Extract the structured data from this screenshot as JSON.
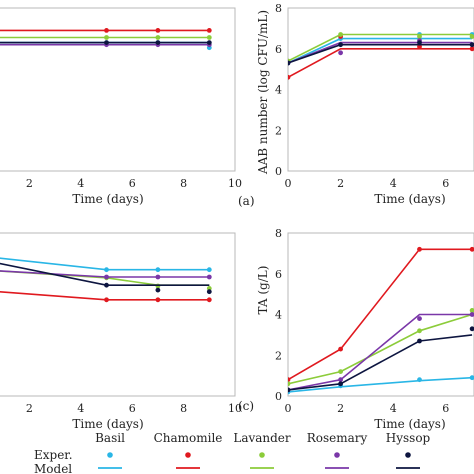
{
  "colors": {
    "Basil": "#29b6e6",
    "Chamomile": "#e0191f",
    "Lavander": "#8ccc3a",
    "Rosemary": "#7a37a8",
    "Hyssop": "#0d1540"
  },
  "legend": {
    "series_names": [
      "Basil",
      "Chamomile",
      "Lavander",
      "Rosemary",
      "Hyssop"
    ],
    "row_labels": [
      "Exper.",
      "Model"
    ]
  },
  "chart_data": [
    {
      "id": "panel-top-left",
      "type": "line",
      "panel_label": "(a)",
      "xlabel": "Time (days)",
      "ylabel": "",
      "xlim": [
        0,
        10
      ],
      "ylim": [
        0,
        8
      ],
      "xticks": [
        "2",
        "4",
        "6",
        "8",
        "10"
      ],
      "yticks": [],
      "grid": false,
      "series": [
        {
          "name": "Basil",
          "exp": [
            [
              0,
              6.3
            ],
            [
              5,
              6.3
            ],
            [
              7,
              6.3
            ],
            [
              9,
              6.05
            ]
          ],
          "model": [
            [
              0,
              6.3
            ],
            [
              9,
              6.3
            ]
          ]
        },
        {
          "name": "Chamomile",
          "exp": [
            [
              0,
              6.9
            ],
            [
              5,
              6.9
            ],
            [
              7,
              6.9
            ],
            [
              9,
              6.9
            ]
          ],
          "model": [
            [
              0,
              6.9
            ],
            [
              9,
              6.9
            ]
          ]
        },
        {
          "name": "Lavander",
          "exp": [
            [
              0,
              6.55
            ],
            [
              5,
              6.55
            ],
            [
              7,
              6.55
            ],
            [
              9,
              6.55
            ]
          ],
          "model": [
            [
              0,
              6.55
            ],
            [
              9,
              6.55
            ]
          ]
        },
        {
          "name": "Rosemary",
          "exp": [
            [
              0,
              6.2
            ],
            [
              5,
              6.2
            ],
            [
              7,
              6.2
            ],
            [
              9,
              6.2
            ]
          ],
          "model": [
            [
              0,
              6.2
            ],
            [
              9,
              6.2
            ]
          ]
        },
        {
          "name": "Hyssop",
          "exp": [
            [
              0,
              6.3
            ],
            [
              5,
              6.3
            ],
            [
              7,
              6.3
            ],
            [
              9,
              6.3
            ]
          ],
          "model": [
            [
              0,
              6.3
            ],
            [
              9,
              6.3
            ]
          ]
        }
      ]
    },
    {
      "id": "panel-top-right",
      "type": "line",
      "panel_label": "",
      "xlabel": "Time (days)",
      "ylabel": "AAB number (log CFU/mL)",
      "xlim": [
        0,
        7
      ],
      "ylim": [
        0,
        8
      ],
      "xticks": [
        "0",
        "2",
        "4",
        "6"
      ],
      "yticks": [
        "0",
        "2",
        "4",
        "6",
        "8"
      ],
      "grid": false,
      "series": [
        {
          "name": "Basil",
          "exp": [
            [
              0,
              5.3
            ],
            [
              2,
              6.5
            ],
            [
              5,
              6.7
            ],
            [
              7,
              6.7
            ]
          ],
          "model": [
            [
              0,
              5.3
            ],
            [
              2,
              6.5
            ],
            [
              7,
              6.5
            ]
          ]
        },
        {
          "name": "Chamomile",
          "exp": [
            [
              0,
              4.6
            ],
            [
              2,
              6.6
            ],
            [
              5,
              6.1
            ],
            [
              7,
              6.0
            ]
          ],
          "model": [
            [
              0,
              4.6
            ],
            [
              2,
              6.0
            ],
            [
              7,
              6.0
            ]
          ]
        },
        {
          "name": "Lavander",
          "exp": [
            [
              0,
              5.4
            ],
            [
              2,
              6.7
            ],
            [
              5,
              6.6
            ],
            [
              7,
              6.6
            ]
          ],
          "model": [
            [
              0,
              5.4
            ],
            [
              2,
              6.7
            ],
            [
              7,
              6.7
            ]
          ]
        },
        {
          "name": "Rosemary",
          "exp": [
            [
              0,
              5.3
            ],
            [
              2,
              5.8
            ],
            [
              5,
              6.4
            ],
            [
              7,
              6.2
            ]
          ],
          "model": [
            [
              0,
              5.3
            ],
            [
              2,
              6.3
            ],
            [
              7,
              6.3
            ]
          ]
        },
        {
          "name": "Hyssop",
          "exp": [
            [
              0,
              5.3
            ],
            [
              2,
              6.2
            ],
            [
              5,
              6.3
            ],
            [
              7,
              6.2
            ]
          ],
          "model": [
            [
              0,
              5.3
            ],
            [
              2,
              6.2
            ],
            [
              7,
              6.2
            ]
          ]
        }
      ]
    },
    {
      "id": "panel-bottom-left",
      "type": "line",
      "panel_label": "(c)",
      "xlabel": "Time (days)",
      "ylabel": "",
      "xlim": [
        0,
        10
      ],
      "ylim": [
        2,
        4
      ],
      "xticks": [
        "2",
        "4",
        "6",
        "8",
        "10"
      ],
      "yticks": [],
      "grid": false,
      "series": [
        {
          "name": "Basil",
          "exp": [
            [
              0,
              3.72
            ],
            [
              5,
              3.55
            ],
            [
              7,
              3.55
            ],
            [
              9,
              3.55
            ]
          ],
          "model": [
            [
              0,
              3.72
            ],
            [
              5,
              3.55
            ],
            [
              9,
              3.55
            ]
          ]
        },
        {
          "name": "Chamomile",
          "exp": [
            [
              0,
              3.3
            ],
            [
              5,
              3.18
            ],
            [
              7,
              3.18
            ],
            [
              9,
              3.18
            ]
          ],
          "model": [
            [
              0,
              3.3
            ],
            [
              5,
              3.18
            ],
            [
              9,
              3.18
            ]
          ]
        },
        {
          "name": "Lavander",
          "exp": [
            [
              0,
              3.55
            ],
            [
              5,
              3.45
            ],
            [
              7,
              3.35
            ],
            [
              9,
              3.32
            ]
          ],
          "model": [
            [
              0,
              3.55
            ],
            [
              5,
              3.45
            ],
            [
              7,
              3.36
            ],
            [
              9,
              3.36
            ]
          ]
        },
        {
          "name": "Rosemary",
          "exp": [
            [
              0,
              3.55
            ],
            [
              5,
              3.46
            ],
            [
              7,
              3.46
            ],
            [
              9,
              3.46
            ]
          ],
          "model": [
            [
              0,
              3.55
            ],
            [
              5,
              3.46
            ],
            [
              9,
              3.46
            ]
          ]
        },
        {
          "name": "Hyssop",
          "exp": [
            [
              0,
              3.7
            ],
            [
              5,
              3.36
            ],
            [
              7,
              3.3
            ],
            [
              9,
              3.28
            ]
          ],
          "model": [
            [
              0,
              3.68
            ],
            [
              5,
              3.36
            ],
            [
              9,
              3.36
            ]
          ]
        }
      ]
    },
    {
      "id": "panel-bottom-right",
      "type": "line",
      "panel_label": "",
      "xlabel": "Time (days)",
      "ylabel": "TA (g/L)",
      "xlim": [
        0,
        7
      ],
      "ylim": [
        0,
        8
      ],
      "xticks": [
        "0",
        "2",
        "4",
        "6"
      ],
      "yticks": [
        "0",
        "2",
        "4",
        "6",
        "8"
      ],
      "grid": false,
      "series": [
        {
          "name": "Basil",
          "exp": [
            [
              0,
              0.2
            ],
            [
              2,
              0.5
            ],
            [
              5,
              0.8
            ],
            [
              7,
              0.9
            ]
          ],
          "model": [
            [
              0,
              0.2
            ],
            [
              2,
              0.45
            ],
            [
              5,
              0.75
            ],
            [
              7,
              0.9
            ]
          ]
        },
        {
          "name": "Chamomile",
          "exp": [
            [
              0,
              0.8
            ],
            [
              2,
              2.3
            ],
            [
              5,
              7.2
            ],
            [
              7,
              7.2
            ]
          ],
          "model": [
            [
              0,
              0.8
            ],
            [
              2,
              2.3
            ],
            [
              5,
              7.2
            ],
            [
              7,
              7.2
            ]
          ]
        },
        {
          "name": "Lavander",
          "exp": [
            [
              0,
              0.6
            ],
            [
              2,
              1.2
            ],
            [
              5,
              3.2
            ],
            [
              7,
              4.2
            ]
          ],
          "model": [
            [
              0,
              0.6
            ],
            [
              2,
              1.2
            ],
            [
              5,
              3.2
            ],
            [
              7,
              4.0
            ]
          ]
        },
        {
          "name": "Rosemary",
          "exp": [
            [
              0,
              0.3
            ],
            [
              2,
              0.8
            ],
            [
              5,
              3.8
            ],
            [
              7,
              4.0
            ]
          ],
          "model": [
            [
              0,
              0.3
            ],
            [
              2,
              0.8
            ],
            [
              5,
              4.0
            ],
            [
              7,
              4.0
            ]
          ]
        },
        {
          "name": "Hyssop",
          "exp": [
            [
              0,
              0.3
            ],
            [
              2,
              0.6
            ],
            [
              5,
              2.7
            ],
            [
              7,
              3.3
            ]
          ],
          "model": [
            [
              0,
              0.3
            ],
            [
              2,
              0.6
            ],
            [
              5,
              2.7
            ],
            [
              7,
              3.0
            ]
          ]
        }
      ]
    }
  ]
}
